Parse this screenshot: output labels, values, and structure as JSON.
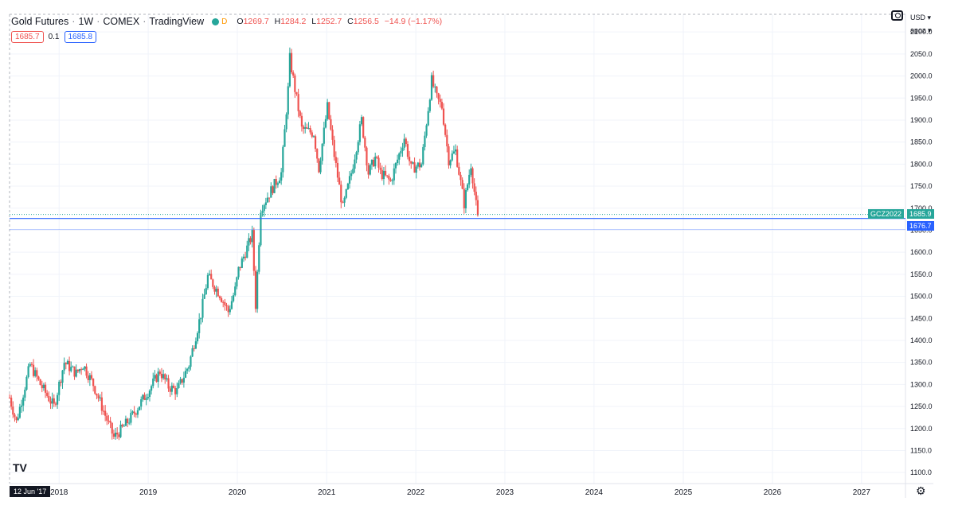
{
  "header": {
    "symbol": "Gold Futures",
    "interval": "1W",
    "exchange": "COMEX",
    "source": "TradingView",
    "mode_letter": "D",
    "ohlc": {
      "o_label": "O",
      "o": "1269.7",
      "h_label": "H",
      "h": "1284.2",
      "l_label": "L",
      "l": "1252.7",
      "c_label": "C",
      "c": "1256.5",
      "change": "−14.9 (−1.17%)"
    },
    "sell_price": "1685.7",
    "spread": "0.1",
    "buy_price": "1685.8"
  },
  "toolbar": {
    "currency": "USD ▾",
    "scale": "apoz ▾"
  },
  "price_tags": {
    "symbol_tag": "GCZ2022",
    "last_price": "1685.9",
    "line_price": "1676.7"
  },
  "start_date_label": "12 Jun '17",
  "logo_text": "TV",
  "settings_icon": "gear-icon",
  "colors": {
    "up": "#26a69a",
    "down": "#ef5350",
    "line": "#2962ff",
    "tag_green": "#26a69a",
    "tag_blue": "#2962ff"
  },
  "chart_data": {
    "type": "candlestick",
    "xlabel": "",
    "ylabel": "",
    "ylim": [
      1075,
      2140
    ],
    "xlim": [
      "2017-06-12",
      "2027-06-30"
    ],
    "yticks": [
      1100,
      1150,
      1200,
      1250,
      1300,
      1350,
      1400,
      1450,
      1500,
      1550,
      1600,
      1650,
      1700,
      1750,
      1800,
      1850,
      1900,
      1950,
      2000,
      2050,
      2100
    ],
    "ytick_labels": [
      "1100.0",
      "1150.0",
      "1200.0",
      "1250.0",
      "1300.0",
      "1350.0",
      "1400.0",
      "1450.0",
      "1500.0",
      "1550.0",
      "1600.0",
      "1650.0",
      "1700.0",
      "1750.0",
      "1800.0",
      "1850.0",
      "1900.0",
      "1950.0",
      "2000.0",
      "2050.0",
      "2100.0"
    ],
    "xticks": [
      "2018",
      "2019",
      "2020",
      "2021",
      "2022",
      "2023",
      "2024",
      "2025",
      "2026",
      "2027"
    ],
    "xtick_dates": [
      "2018-01-01",
      "2019-01-01",
      "2020-01-01",
      "2021-01-01",
      "2022-01-01",
      "2023-01-01",
      "2024-01-01",
      "2025-01-01",
      "2026-01-01",
      "2027-01-01"
    ],
    "close_path": [
      [
        "2017-06-12",
        1270
      ],
      [
        "2017-07-10",
        1215
      ],
      [
        "2017-09-04",
        1345
      ],
      [
        "2017-10-16",
        1300
      ],
      [
        "2017-12-11",
        1250
      ],
      [
        "2018-01-22",
        1350
      ],
      [
        "2018-03-12",
        1325
      ],
      [
        "2018-04-09",
        1345
      ],
      [
        "2018-05-21",
        1300
      ],
      [
        "2018-06-25",
        1250
      ],
      [
        "2018-08-13",
        1180
      ],
      [
        "2018-09-17",
        1200
      ],
      [
        "2018-10-29",
        1230
      ],
      [
        "2019-01-07",
        1290
      ],
      [
        "2019-02-18",
        1330
      ],
      [
        "2019-03-25",
        1295
      ],
      [
        "2019-04-29",
        1285
      ],
      [
        "2019-06-17",
        1345
      ],
      [
        "2019-08-05",
        1460
      ],
      [
        "2019-09-02",
        1545
      ],
      [
        "2019-10-21",
        1505
      ],
      [
        "2019-11-25",
        1465
      ],
      [
        "2019-12-23",
        1515
      ],
      [
        "2020-01-06",
        1560
      ],
      [
        "2020-03-02",
        1640
      ],
      [
        "2020-03-16",
        1480
      ],
      [
        "2020-04-06",
        1700
      ],
      [
        "2020-05-18",
        1740
      ],
      [
        "2020-06-29",
        1780
      ],
      [
        "2020-07-27",
        1970
      ],
      [
        "2020-08-03",
        2040
      ],
      [
        "2020-08-24",
        1970
      ],
      [
        "2020-09-21",
        1880
      ],
      [
        "2020-11-09",
        1870
      ],
      [
        "2020-11-30",
        1790
      ],
      [
        "2021-01-04",
        1930
      ],
      [
        "2021-02-01",
        1820
      ],
      [
        "2021-03-08",
        1700
      ],
      [
        "2021-04-12",
        1780
      ],
      [
        "2021-05-24",
        1900
      ],
      [
        "2021-06-21",
        1780
      ],
      [
        "2021-07-19",
        1815
      ],
      [
        "2021-08-09",
        1780
      ],
      [
        "2021-09-20",
        1760
      ],
      [
        "2021-11-15",
        1860
      ],
      [
        "2021-12-13",
        1790
      ],
      [
        "2022-01-24",
        1800
      ],
      [
        "2022-03-07",
        1990
      ],
      [
        "2022-03-28",
        1950
      ],
      [
        "2022-04-18",
        1930
      ],
      [
        "2022-05-16",
        1810
      ],
      [
        "2022-06-13",
        1830
      ],
      [
        "2022-07-18",
        1710
      ],
      [
        "2022-08-15",
        1800
      ],
      [
        "2022-09-12",
        1676
      ]
    ],
    "last_close": 1685.9,
    "horizontal_lines": [
      1676.7
    ],
    "grid": true,
    "legend": "none"
  }
}
